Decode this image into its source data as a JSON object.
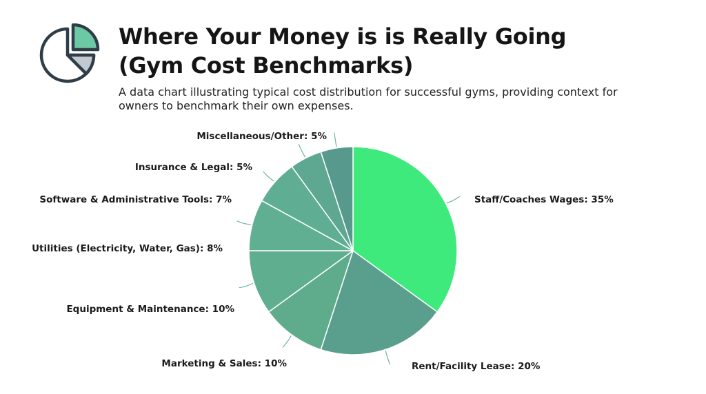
{
  "header": {
    "title_line1": "Where Your Money is is Really Going",
    "title_line2": "(Gym Cost Benchmarks)",
    "subtitle_line1": "A data chart illustrating typical cost distribution for successful gyms, providing context for",
    "subtitle_line2": "owners to benchmark their own expenses.",
    "icon": "pie-chart-icon"
  },
  "chart_data": {
    "type": "pie",
    "title": "Where Your Money is is Really Going (Gym Cost Benchmarks)",
    "legend": "none",
    "slices": [
      {
        "label": "Staff/Coaches Wages: 35%",
        "name": "Staff/Coaches Wages",
        "value": 35,
        "color": "#3dea7b"
      },
      {
        "label": "Rent/Facility Lease: 20%",
        "name": "Rent/Facility Lease",
        "value": 20,
        "color": "#5a9f8e"
      },
      {
        "label": "Marketing & Sales: 10%",
        "name": "Marketing & Sales",
        "value": 10,
        "color": "#5eac8c"
      },
      {
        "label": "Equipment & Maintenance: 10%",
        "name": "Equipment & Maintenance",
        "value": 10,
        "color": "#5fae8f"
      },
      {
        "label": "Utilities (Electricity, Water, Gas): 8%",
        "name": "Utilities (Electricity, Water, Gas)",
        "value": 8,
        "color": "#60af92"
      },
      {
        "label": "Software & Administrative Tools: 7%",
        "name": "Software & Administrative Tools",
        "value": 7,
        "color": "#5fae94"
      },
      {
        "label": "Insurance & Legal: 5%",
        "name": "Insurance & Legal",
        "value": 5,
        "color": "#5ea891"
      },
      {
        "label": "Miscellaneous/Other: 5%",
        "name": "Miscellaneous/Other",
        "value": 5,
        "color": "#579a8d"
      }
    ],
    "colors": {
      "slice_border": "#ffffff",
      "leader_line": "#6fb5a6",
      "icon_outline": "#2f3d48",
      "icon_accent": "#6cc9a3",
      "icon_gray": "#c2c9d1"
    }
  }
}
